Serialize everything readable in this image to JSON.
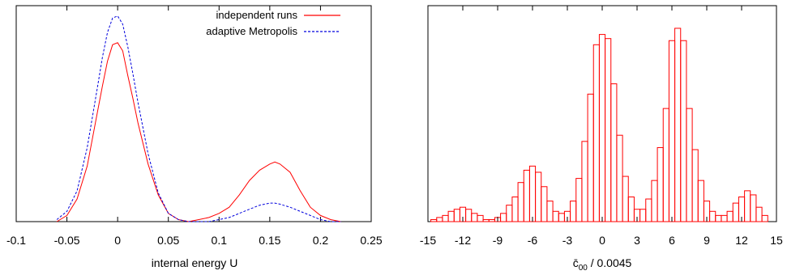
{
  "chart_data": [
    {
      "type": "line",
      "xlabel": "internal energy  U",
      "ylabel": "",
      "title": "",
      "xlim": [
        -0.1,
        0.25
      ],
      "ylim": [
        0,
        1.05
      ],
      "xticks": [
        "-0.1",
        "-0.05",
        "0",
        "0.05",
        "0.1",
        "0.15",
        "0.2",
        "0.25"
      ],
      "yticks": [],
      "legend": {
        "placement": "top-right"
      },
      "series": [
        {
          "name": "independent runs",
          "color": "#ff0000",
          "style": "solid",
          "x": [
            -0.06,
            -0.05,
            -0.04,
            -0.03,
            -0.02,
            -0.015,
            -0.01,
            -0.005,
            0,
            0.005,
            0.01,
            0.015,
            0.02,
            0.03,
            0.04,
            0.05,
            0.06,
            0.07,
            0.08,
            0.09,
            0.1,
            0.11,
            0.12,
            0.13,
            0.14,
            0.15,
            0.155,
            0.16,
            0.17,
            0.18,
            0.19,
            0.2,
            0.21,
            0.22
          ],
          "y": [
            0.0,
            0.03,
            0.11,
            0.27,
            0.53,
            0.66,
            0.78,
            0.86,
            0.87,
            0.83,
            0.71,
            0.6,
            0.48,
            0.28,
            0.13,
            0.04,
            0.01,
            0.0,
            0.01,
            0.02,
            0.04,
            0.07,
            0.13,
            0.2,
            0.25,
            0.28,
            0.29,
            0.28,
            0.24,
            0.15,
            0.07,
            0.03,
            0.01,
            0.0
          ]
        },
        {
          "name": "adaptive Metropolis",
          "color": "#0000dd",
          "style": "dashed",
          "x": [
            -0.06,
            -0.05,
            -0.04,
            -0.03,
            -0.02,
            -0.015,
            -0.01,
            -0.005,
            0,
            0.005,
            0.01,
            0.015,
            0.02,
            0.03,
            0.04,
            0.05,
            0.06,
            0.07,
            0.08,
            0.09,
            0.1,
            0.11,
            0.12,
            0.13,
            0.14,
            0.15,
            0.155,
            0.16,
            0.17,
            0.18,
            0.19,
            0.2,
            0.21,
            0.22
          ],
          "y": [
            0.01,
            0.05,
            0.15,
            0.36,
            0.65,
            0.8,
            0.92,
            0.99,
            1.0,
            0.96,
            0.85,
            0.72,
            0.58,
            0.33,
            0.14,
            0.04,
            0.01,
            0.0,
            0.0,
            0.0,
            0.01,
            0.02,
            0.04,
            0.06,
            0.08,
            0.09,
            0.09,
            0.085,
            0.07,
            0.05,
            0.03,
            0.01,
            0.0,
            0.0
          ]
        }
      ]
    },
    {
      "type": "bar",
      "xlabel": "c̄",
      "xlabel_sub": "00",
      "xlabel_suffix": " / 0.0045",
      "ylabel": "",
      "title": "",
      "xlim": [
        -15,
        15
      ],
      "ylim": [
        0,
        1.05
      ],
      "xticks": [
        "-15",
        "-12",
        "-9",
        "-6",
        "-3",
        "0",
        "3",
        "6",
        "9",
        "12",
        "15"
      ],
      "yticks": [],
      "bin_width": 0.5,
      "series": [
        {
          "name": "",
          "color": "#ff0000",
          "bins": [
            -14.5,
            -14,
            -13.5,
            -13,
            -12.5,
            -12,
            -11.5,
            -11,
            -10.5,
            -10,
            -9.5,
            -9,
            -8.5,
            -8,
            -7.5,
            -7,
            -6.5,
            -6,
            -5.5,
            -5,
            -4.5,
            -4,
            -3.5,
            -3,
            -2.5,
            -2,
            -1.5,
            -1,
            -0.5,
            0,
            0.5,
            1,
            1.5,
            2,
            2.5,
            3,
            3.5,
            4,
            4.5,
            5,
            5.5,
            6,
            6.5,
            7,
            7.5,
            8,
            8.5,
            9,
            9.5,
            10,
            10.5,
            11,
            11.5,
            12,
            12.5,
            13,
            13.5,
            14
          ],
          "values": [
            0.01,
            0.02,
            0.03,
            0.05,
            0.06,
            0.07,
            0.06,
            0.04,
            0.03,
            0.01,
            0.01,
            0.02,
            0.04,
            0.08,
            0.12,
            0.19,
            0.25,
            0.27,
            0.24,
            0.17,
            0.1,
            0.05,
            0.04,
            0.05,
            0.1,
            0.21,
            0.39,
            0.62,
            0.86,
            0.91,
            0.89,
            0.67,
            0.42,
            0.22,
            0.12,
            0.06,
            0.06,
            0.11,
            0.2,
            0.36,
            0.55,
            0.88,
            0.94,
            0.88,
            0.55,
            0.35,
            0.2,
            0.1,
            0.05,
            0.03,
            0.03,
            0.05,
            0.09,
            0.12,
            0.15,
            0.13,
            0.07,
            0.03
          ]
        }
      ]
    }
  ]
}
